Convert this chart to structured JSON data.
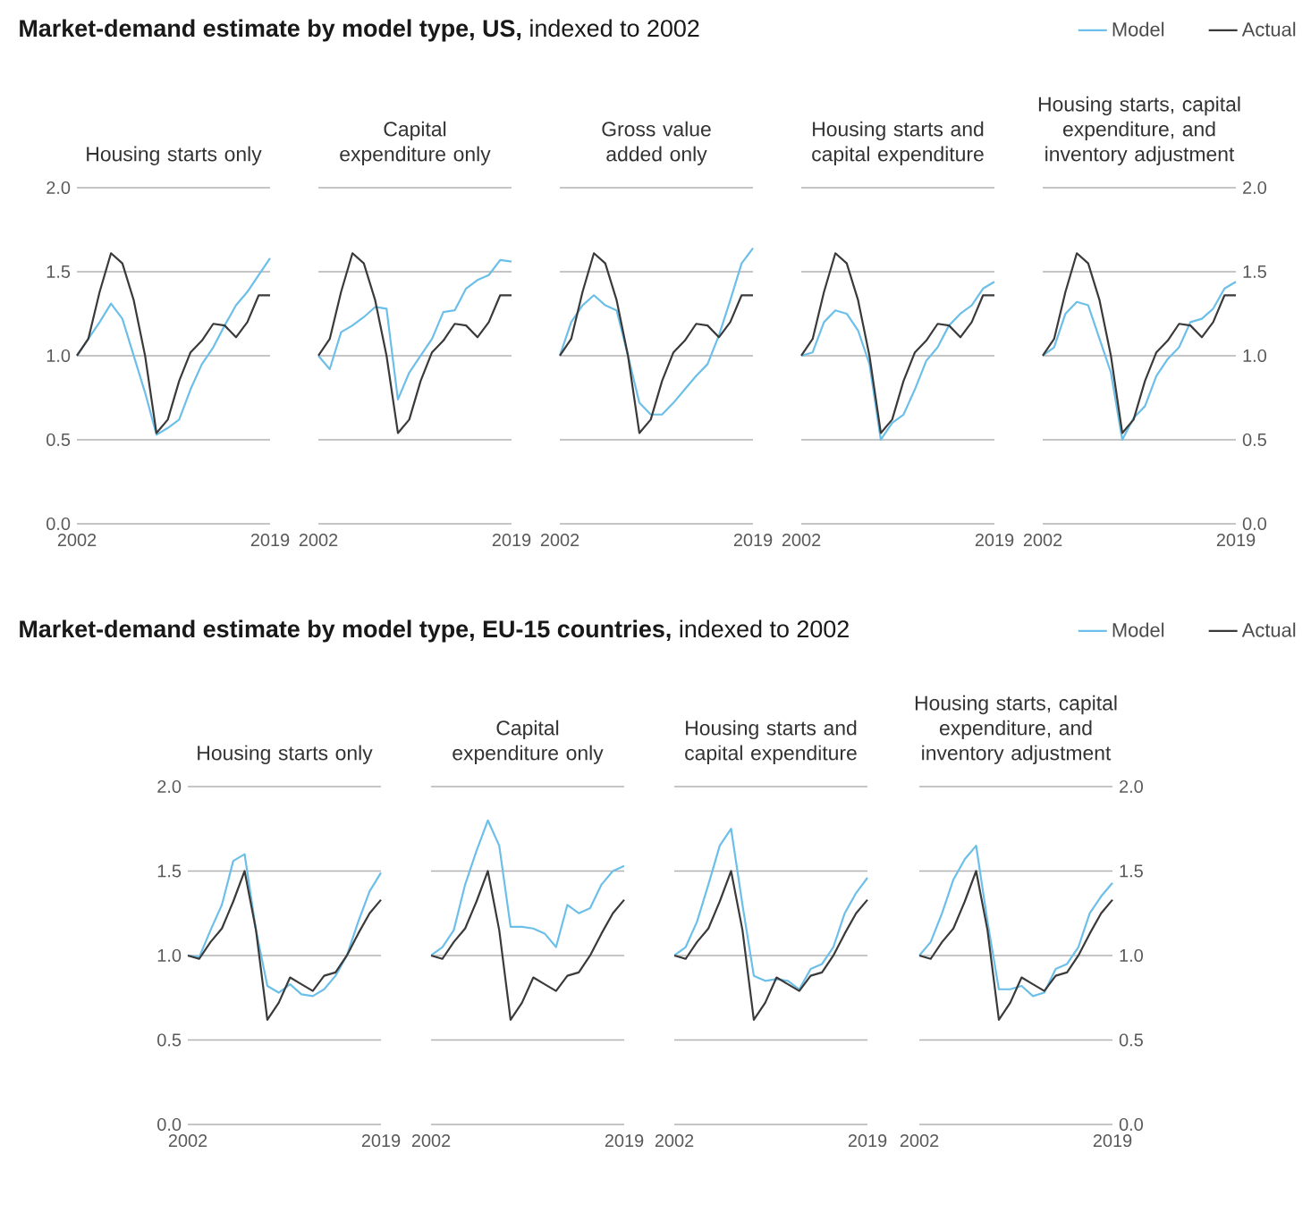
{
  "chart_data": [
    {
      "type": "line",
      "title": "Housing starts only",
      "annotations": [
        "**Market-demand estimate by model type, US,** indexed to 2002"
      ],
      "x": [
        2002,
        2003,
        2004,
        2005,
        2006,
        2007,
        2008,
        2009,
        2010,
        2011,
        2012,
        2013,
        2014,
        2015,
        2016,
        2017,
        2018,
        2019
      ],
      "xlim": [
        2002,
        2019
      ],
      "xticks": [
        2002,
        2019
      ],
      "ylim": [
        0,
        2
      ],
      "yticks": [
        {
          "value": 0,
          "label": "0.0"
        },
        {
          "value": 0.5,
          "label": "0.5"
        },
        {
          "value": 1,
          "label": "1.0"
        },
        {
          "value": 1.5,
          "label": "1.5"
        },
        {
          "value": 2,
          "label": "2.0"
        }
      ],
      "grid": "y",
      "series": [
        {
          "color": "#6cbfe8",
          "values": [
            1.0,
            1.1,
            1.2,
            1.31,
            1.22,
            1.0,
            0.78,
            0.53,
            0.57,
            0.62,
            0.8,
            0.95,
            1.05,
            1.18,
            1.3,
            1.38,
            1.48,
            1.58
          ]
        },
        {
          "color": "#3a3a3a",
          "values": [
            1.0,
            1.1,
            1.38,
            1.61,
            1.55,
            1.33,
            1.0,
            0.54,
            0.62,
            0.85,
            1.02,
            1.09,
            1.19,
            1.18,
            1.11,
            1.2,
            1.36,
            1.36
          ]
        }
      ]
    },
    {
      "type": "line",
      "title": "Capital expenditure only",
      "tick_labels": "x",
      "x": [
        2002,
        2003,
        2004,
        2005,
        2006,
        2007,
        2008,
        2009,
        2010,
        2011,
        2012,
        2013,
        2014,
        2015,
        2016,
        2017,
        2018,
        2019
      ],
      "xlim": [
        2002,
        2019
      ],
      "xticks": [
        2002,
        2019
      ],
      "ylim": [
        0,
        2
      ],
      "yticks": [
        0,
        0.5,
        1,
        1.5,
        2
      ],
      "grid": "y",
      "series": [
        {
          "color": "#6cbfe8",
          "values": [
            1.0,
            0.92,
            1.14,
            1.18,
            1.23,
            1.29,
            1.28,
            0.74,
            0.9,
            1.0,
            1.1,
            1.26,
            1.27,
            1.4,
            1.45,
            1.48,
            1.57,
            1.56
          ]
        },
        {
          "color": "#3a3a3a",
          "values": [
            1.0,
            1.1,
            1.38,
            1.61,
            1.55,
            1.33,
            1.0,
            0.54,
            0.62,
            0.85,
            1.02,
            1.09,
            1.19,
            1.18,
            1.11,
            1.2,
            1.36,
            1.36
          ]
        }
      ]
    },
    {
      "type": "line",
      "title": "Gross value added only",
      "tick_labels": "x",
      "x": [
        2002,
        2003,
        2004,
        2005,
        2006,
        2007,
        2008,
        2009,
        2010,
        2011,
        2012,
        2013,
        2014,
        2015,
        2016,
        2017,
        2018,
        2019
      ],
      "xlim": [
        2002,
        2019
      ],
      "xticks": [
        2002,
        2019
      ],
      "ylim": [
        0,
        2
      ],
      "yticks": [
        0,
        0.5,
        1,
        1.5,
        2
      ],
      "grid": "y",
      "series": [
        {
          "color": "#6cbfe8",
          "values": [
            1.0,
            1.2,
            1.3,
            1.36,
            1.3,
            1.27,
            1.0,
            0.72,
            0.65,
            0.65,
            0.72,
            0.8,
            0.88,
            0.95,
            1.12,
            1.33,
            1.55,
            1.64
          ]
        },
        {
          "color": "#3a3a3a",
          "values": [
            1.0,
            1.1,
            1.38,
            1.61,
            1.55,
            1.33,
            1.0,
            0.54,
            0.62,
            0.85,
            1.02,
            1.09,
            1.19,
            1.18,
            1.11,
            1.2,
            1.36,
            1.36
          ]
        }
      ]
    },
    {
      "type": "line",
      "title": "Housing starts and capital expenditure",
      "tick_labels": "x",
      "x": [
        2002,
        2003,
        2004,
        2005,
        2006,
        2007,
        2008,
        2009,
        2010,
        2011,
        2012,
        2013,
        2014,
        2015,
        2016,
        2017,
        2018,
        2019
      ],
      "xlim": [
        2002,
        2019
      ],
      "xticks": [
        2002,
        2019
      ],
      "ylim": [
        0,
        2
      ],
      "yticks": [
        0,
        0.5,
        1,
        1.5,
        2
      ],
      "grid": "y",
      "series": [
        {
          "color": "#6cbfe8",
          "values": [
            1.0,
            1.02,
            1.2,
            1.27,
            1.25,
            1.15,
            0.95,
            0.5,
            0.6,
            0.65,
            0.8,
            0.97,
            1.05,
            1.18,
            1.25,
            1.3,
            1.4,
            1.44
          ]
        },
        {
          "color": "#3a3a3a",
          "values": [
            1.0,
            1.1,
            1.38,
            1.61,
            1.55,
            1.33,
            1.0,
            0.54,
            0.62,
            0.85,
            1.02,
            1.09,
            1.19,
            1.18,
            1.11,
            1.2,
            1.36,
            1.36
          ]
        }
      ]
    },
    {
      "type": "line",
      "title": "Housing starts, capital expenditure, and inventory adjustment",
      "legend": "top right",
      "x": [
        2002,
        2003,
        2004,
        2005,
        2006,
        2007,
        2008,
        2009,
        2010,
        2011,
        2012,
        2013,
        2014,
        2015,
        2016,
        2017,
        2018,
        2019
      ],
      "xlim": [
        2002,
        2019
      ],
      "xticks": [
        2002,
        2019
      ],
      "ylim": [
        0,
        2
      ],
      "yticks": [
        {
          "value": 0,
          "label": "0.0"
        },
        {
          "value": 0.5,
          "label": "0.5"
        },
        {
          "value": 1,
          "label": "1.0"
        },
        {
          "value": 1.5,
          "label": "1.5"
        },
        {
          "value": 2,
          "label": "2.0"
        }
      ],
      "grid": "y",
      "series": [
        {
          "name": "Model",
          "color": "#6cbfe8",
          "values": [
            1.0,
            1.05,
            1.25,
            1.32,
            1.3,
            1.1,
            0.9,
            0.5,
            0.63,
            0.7,
            0.88,
            0.98,
            1.05,
            1.2,
            1.22,
            1.28,
            1.4,
            1.44
          ]
        },
        {
          "name": "Actual",
          "color": "#3a3a3a",
          "values": [
            1.0,
            1.1,
            1.38,
            1.61,
            1.55,
            1.33,
            1.0,
            0.54,
            0.62,
            0.85,
            1.02,
            1.09,
            1.19,
            1.18,
            1.11,
            1.2,
            1.36,
            1.36
          ]
        }
      ]
    },
    {
      "type": "line",
      "title": "Housing starts only",
      "annotations": [
        "**Market-demand estimate by model type, EU-15 countries,** indexed to 2002"
      ],
      "x": [
        2002,
        2003,
        2004,
        2005,
        2006,
        2007,
        2008,
        2009,
        2010,
        2011,
        2012,
        2013,
        2014,
        2015,
        2016,
        2017,
        2018,
        2019
      ],
      "xlim": [
        2002,
        2019
      ],
      "xticks": [
        2002,
        2019
      ],
      "ylim": [
        0,
        2
      ],
      "yticks": [
        {
          "value": 0,
          "label": "0.0"
        },
        {
          "value": 0.5,
          "label": "0.5"
        },
        {
          "value": 1,
          "label": "1.0"
        },
        {
          "value": 1.5,
          "label": "1.5"
        },
        {
          "value": 2,
          "label": "2.0"
        }
      ],
      "grid": "y",
      "series": [
        {
          "color": "#6cbfe8",
          "values": [
            1.0,
            0.99,
            1.15,
            1.3,
            1.56,
            1.6,
            1.15,
            0.82,
            0.78,
            0.83,
            0.77,
            0.76,
            0.8,
            0.88,
            1.0,
            1.2,
            1.38,
            1.49
          ]
        },
        {
          "color": "#3a3a3a",
          "values": [
            1.0,
            0.98,
            1.08,
            1.16,
            1.32,
            1.5,
            1.15,
            0.62,
            0.72,
            0.87,
            0.83,
            0.79,
            0.88,
            0.9,
            1.0,
            1.13,
            1.25,
            1.33
          ]
        }
      ]
    },
    {
      "type": "line",
      "title": "Capital expenditure only",
      "tick_labels": "x",
      "x": [
        2002,
        2003,
        2004,
        2005,
        2006,
        2007,
        2008,
        2009,
        2010,
        2011,
        2012,
        2013,
        2014,
        2015,
        2016,
        2017,
        2018,
        2019
      ],
      "xlim": [
        2002,
        2019
      ],
      "xticks": [
        2002,
        2019
      ],
      "ylim": [
        0,
        2
      ],
      "yticks": [
        0,
        0.5,
        1,
        1.5,
        2
      ],
      "grid": "y",
      "series": [
        {
          "color": "#6cbfe8",
          "values": [
            1.0,
            1.05,
            1.15,
            1.42,
            1.62,
            1.8,
            1.65,
            1.17,
            1.17,
            1.16,
            1.13,
            1.05,
            1.3,
            1.25,
            1.28,
            1.42,
            1.5,
            1.53
          ]
        },
        {
          "color": "#3a3a3a",
          "values": [
            1.0,
            0.98,
            1.08,
            1.16,
            1.32,
            1.5,
            1.15,
            0.62,
            0.72,
            0.87,
            0.83,
            0.79,
            0.88,
            0.9,
            1.0,
            1.13,
            1.25,
            1.33
          ]
        }
      ]
    },
    {
      "type": "line",
      "title": "Housing starts and capital expenditure",
      "tick_labels": "x",
      "x": [
        2002,
        2003,
        2004,
        2005,
        2006,
        2007,
        2008,
        2009,
        2010,
        2011,
        2012,
        2013,
        2014,
        2015,
        2016,
        2017,
        2018,
        2019
      ],
      "xlim": [
        2002,
        2019
      ],
      "xticks": [
        2002,
        2019
      ],
      "ylim": [
        0,
        2
      ],
      "yticks": [
        0,
        0.5,
        1,
        1.5,
        2
      ],
      "grid": "y",
      "series": [
        {
          "color": "#6cbfe8",
          "values": [
            1.0,
            1.05,
            1.2,
            1.42,
            1.65,
            1.75,
            1.3,
            0.88,
            0.85,
            0.86,
            0.85,
            0.8,
            0.92,
            0.95,
            1.05,
            1.25,
            1.37,
            1.46
          ]
        },
        {
          "color": "#3a3a3a",
          "values": [
            1.0,
            0.98,
            1.08,
            1.16,
            1.32,
            1.5,
            1.15,
            0.62,
            0.72,
            0.87,
            0.83,
            0.79,
            0.88,
            0.9,
            1.0,
            1.13,
            1.25,
            1.33
          ]
        }
      ]
    },
    {
      "type": "line",
      "title": "Housing starts, capital expenditure, and inventory adjustment",
      "legend": "top right",
      "x": [
        2002,
        2003,
        2004,
        2005,
        2006,
        2007,
        2008,
        2009,
        2010,
        2011,
        2012,
        2013,
        2014,
        2015,
        2016,
        2017,
        2018,
        2019
      ],
      "xlim": [
        2002,
        2019
      ],
      "xticks": [
        2002,
        2019
      ],
      "ylim": [
        0,
        2
      ],
      "yticks": [
        {
          "value": 0,
          "label": "0.0"
        },
        {
          "value": 0.5,
          "label": "0.5"
        },
        {
          "value": 1,
          "label": "1.0"
        },
        {
          "value": 1.5,
          "label": "1.5"
        },
        {
          "value": 2,
          "label": "2.0"
        }
      ],
      "grid": "y",
      "series": [
        {
          "name": "Model",
          "color": "#6cbfe8",
          "values": [
            1.0,
            1.08,
            1.25,
            1.45,
            1.57,
            1.65,
            1.2,
            0.8,
            0.8,
            0.82,
            0.76,
            0.78,
            0.92,
            0.95,
            1.05,
            1.25,
            1.35,
            1.43
          ]
        },
        {
          "name": "Actual",
          "color": "#3a3a3a",
          "values": [
            1.0,
            0.98,
            1.08,
            1.16,
            1.32,
            1.5,
            1.15,
            0.62,
            0.72,
            0.87,
            0.83,
            0.79,
            0.88,
            0.9,
            1.0,
            1.13,
            1.25,
            1.33
          ]
        }
      ]
    }
  ]
}
